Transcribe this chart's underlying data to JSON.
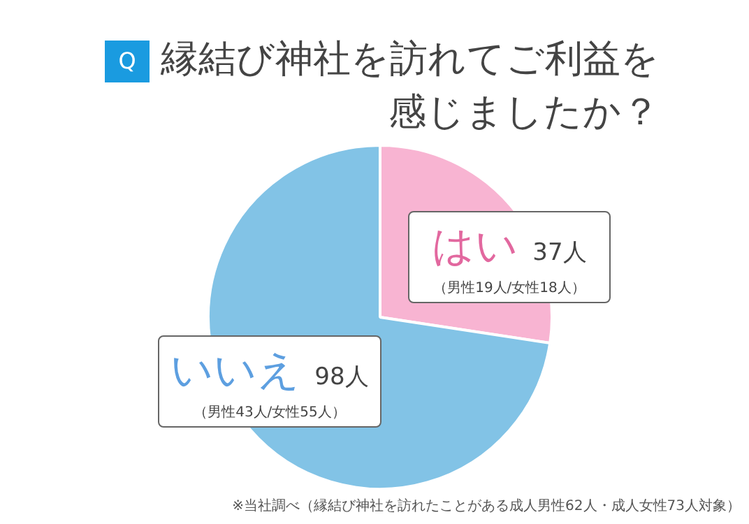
{
  "chart_data": {
    "type": "pie",
    "title": "縁結び神社を訪れてご利益を感じましたか？",
    "categories": [
      "はい",
      "いいえ"
    ],
    "values": [
      37,
      98
    ],
    "colors": [
      "#f8b4d2",
      "#82c3e6"
    ],
    "value_labels": [
      "37人",
      "98人"
    ],
    "legend": false,
    "annotations": [
      "Q",
      {
        "text": "（男性19人/女性18人）",
        "x": "はい"
      },
      {
        "text": "（男性43人/女性55人）",
        "x": "いいえ"
      },
      "※当社調べ（縁結び神社を訪れたことがある成人男性62人・成人女性73人対象）"
    ]
  }
}
